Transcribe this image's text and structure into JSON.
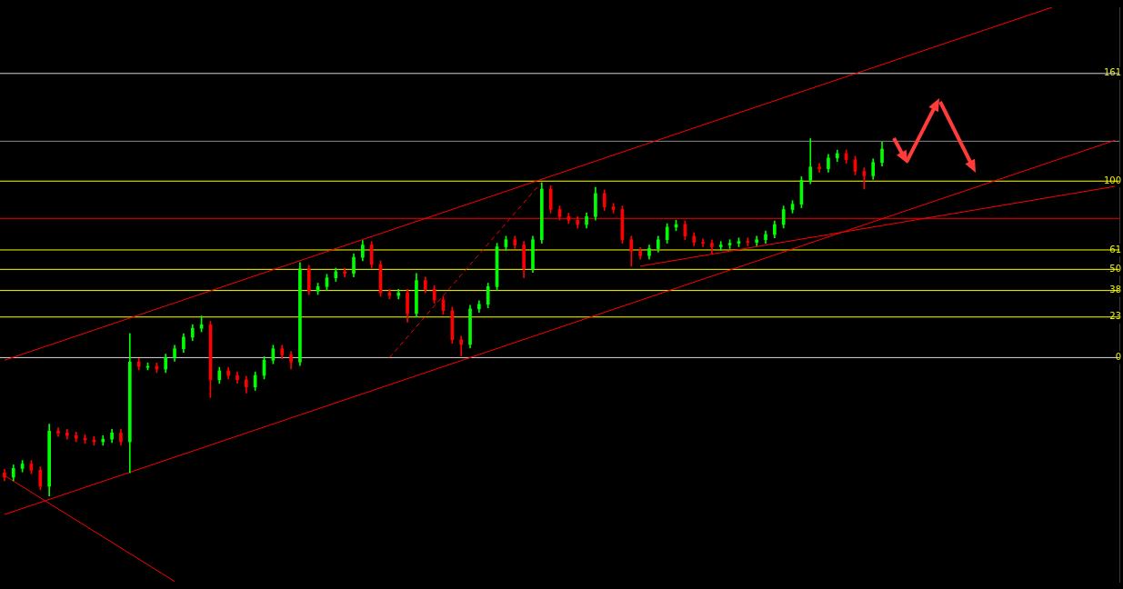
{
  "chart_data": {
    "type": "candlestick",
    "tick_labels": "y",
    "categories": [
      null,
      null,
      null,
      null,
      null,
      null,
      null,
      null,
      null,
      null,
      null,
      null,
      null,
      null,
      null,
      null,
      null,
      null,
      null,
      null,
      null,
      null,
      null,
      null,
      null,
      null,
      null,
      null,
      null,
      null,
      null,
      null,
      null,
      null,
      null,
      null,
      null,
      null,
      null,
      null,
      null,
      null,
      null,
      null,
      null,
      null,
      null,
      null,
      null,
      null,
      null,
      null,
      null,
      null,
      null,
      null,
      null,
      null,
      null,
      null,
      null,
      null,
      null,
      null,
      null,
      null,
      null,
      null,
      null,
      null,
      null,
      null,
      null,
      null,
      null,
      null,
      null,
      null,
      null,
      null,
      null,
      null,
      null,
      null,
      null,
      null,
      null,
      null,
      null,
      null,
      null,
      null,
      null,
      null,
      null,
      null,
      null,
      null,
      null,
      null,
      null,
      null,
      null,
      null,
      null,
      null,
      null,
      null,
      null,
      null,
      null,
      null,
      null,
      null,
      null,
      null,
      null,
      null,
      null,
      null,
      null,
      null,
      null,
      null,
      null
    ],
    "ohlc": [
      [
        -65.3,
        -63.3,
        -69.8,
        -67.8
      ],
      [
        -67.8,
        -60.8,
        -69.8,
        -62.8
      ],
      [
        -62.8,
        -58.3,
        -64.8,
        -60.3
      ],
      [
        -60.3,
        -58.3,
        -65.8,
        -63.8
      ],
      [
        -63.8,
        -61.8,
        -74.9,
        -72.9
      ],
      [
        -72.9,
        -37.7,
        -78.4,
        -41.7
      ],
      [
        -41.7,
        -39.7,
        -44.7,
        -42.7
      ],
      [
        -42.7,
        -40.7,
        -46.2,
        -44.2
      ],
      [
        -44.2,
        -42.2,
        -47.7,
        -45.7
      ],
      [
        -45.7,
        -43.7,
        -48.7,
        -46.7
      ],
      [
        -46.7,
        -44.7,
        -49.7,
        -47.7
      ],
      [
        -47.7,
        -44.2,
        -49.7,
        -46.2
      ],
      [
        -46.2,
        -40.7,
        -48.2,
        -42.7
      ],
      [
        -42.7,
        -40.7,
        -49.7,
        -47.7
      ],
      [
        -47.7,
        13.6,
        -65.3,
        -2.5
      ],
      [
        -2.5,
        -0.5,
        -7.0,
        -5.0
      ],
      [
        -5.0,
        -3.0,
        -7.0,
        -5.0
      ],
      [
        -5.0,
        -3.0,
        -8.5,
        -6.5
      ],
      [
        -6.5,
        2.0,
        -8.5,
        0
      ],
      [
        0,
        7.0,
        -2.0,
        5.0
      ],
      [
        5.0,
        13.6,
        3.0,
        11.6
      ],
      [
        11.6,
        18.6,
        9.6,
        16.6
      ],
      [
        16.6,
        23.6,
        14.6,
        18.6
      ],
      [
        18.6,
        20.6,
        -22.6,
        -12.6
      ],
      [
        -12.6,
        -5.5,
        -14.6,
        -7.5
      ],
      [
        -7.5,
        -5.5,
        -12.1,
        -10.1
      ],
      [
        -10.1,
        -8.1,
        -14.6,
        -12.6
      ],
      [
        -12.6,
        -10.6,
        -20.1,
        -16.6
      ],
      [
        -16.6,
        -8.1,
        -18.6,
        -10.1
      ],
      [
        -10.1,
        0.5,
        -12.1,
        -1.5
      ],
      [
        -1.5,
        7.0,
        -3.5,
        5.0
      ],
      [
        5.0,
        7.0,
        -0.5,
        1.5
      ],
      [
        1.5,
        3.5,
        -6.5,
        -2.5
      ],
      [
        -2.5,
        53.8,
        -4.5,
        50.3
      ],
      [
        50.3,
        52.3,
        35.7,
        37.7
      ],
      [
        37.7,
        42.2,
        35.7,
        40.2
      ],
      [
        40.2,
        47.2,
        38.2,
        45.2
      ],
      [
        45.2,
        50.7,
        43.2,
        48.7
      ],
      [
        48.7,
        50.7,
        45.7,
        47.7
      ],
      [
        47.7,
        58.8,
        45.7,
        56.8
      ],
      [
        56.8,
        66.3,
        54.8,
        63.8
      ],
      [
        63.8,
        65.8,
        50.8,
        52.8
      ],
      [
        52.8,
        54.8,
        34.7,
        36.7
      ],
      [
        36.7,
        38.7,
        33.2,
        35.2
      ],
      [
        35.2,
        38.7,
        33.2,
        36.7
      ],
      [
        36.7,
        38.7,
        20.1,
        25.1
      ],
      [
        25.1,
        47.7,
        23.1,
        43.7
      ],
      [
        43.7,
        45.7,
        36.7,
        38.7
      ],
      [
        38.7,
        40.7,
        30.7,
        32.7
      ],
      [
        32.7,
        34.7,
        24.6,
        26.6
      ],
      [
        26.6,
        28.6,
        8.1,
        10.1
      ],
      [
        10.1,
        12.1,
        1.0,
        7.5
      ],
      [
        7.5,
        29.6,
        5.5,
        27.6
      ],
      [
        27.6,
        32.2,
        25.6,
        30.2
      ],
      [
        30.2,
        42.2,
        28.2,
        40.2
      ],
      [
        40.2,
        64.8,
        38.2,
        62.8
      ],
      [
        62.8,
        68.8,
        60.8,
        66.8
      ],
      [
        66.8,
        68.8,
        61.8,
        63.8
      ],
      [
        63.8,
        65.8,
        45.2,
        50.3
      ],
      [
        50.3,
        68.8,
        48.3,
        66.8
      ],
      [
        66.8,
        99.0,
        64.8,
        95.5
      ],
      [
        95.5,
        97.5,
        81.9,
        83.9
      ],
      [
        83.9,
        85.9,
        77.9,
        79.9
      ],
      [
        79.9,
        81.9,
        75.9,
        77.9
      ],
      [
        77.9,
        79.9,
        73.4,
        75.4
      ],
      [
        75.4,
        81.9,
        73.4,
        79.9
      ],
      [
        79.9,
        96.5,
        77.9,
        93.0
      ],
      [
        93.0,
        95.0,
        83.4,
        85.4
      ],
      [
        85.4,
        87.4,
        81.9,
        83.9
      ],
      [
        83.9,
        85.9,
        64.8,
        66.8
      ],
      [
        66.8,
        68.8,
        51.8,
        60.3
      ],
      [
        60.3,
        62.3,
        55.8,
        57.8
      ],
      [
        57.8,
        63.8,
        55.8,
        61.8
      ],
      [
        61.8,
        68.8,
        59.8,
        66.8
      ],
      [
        66.8,
        75.9,
        64.8,
        73.9
      ],
      [
        73.9,
        77.9,
        71.9,
        75.4
      ],
      [
        75.4,
        77.4,
        66.8,
        68.8
      ],
      [
        68.8,
        70.8,
        63.3,
        65.3
      ],
      [
        65.3,
        67.3,
        62.8,
        64.8
      ],
      [
        64.8,
        66.8,
        58.8,
        62.8
      ],
      [
        62.8,
        65.8,
        60.8,
        63.8
      ],
      [
        63.8,
        66.8,
        61.8,
        64.8
      ],
      [
        64.8,
        67.8,
        62.8,
        65.8
      ],
      [
        65.8,
        67.8,
        63.3,
        65.3
      ],
      [
        65.3,
        68.8,
        63.3,
        66.8
      ],
      [
        66.8,
        71.8,
        64.8,
        69.8
      ],
      [
        69.8,
        77.4,
        67.8,
        75.4
      ],
      [
        75.4,
        85.9,
        73.4,
        83.9
      ],
      [
        83.9,
        88.9,
        81.9,
        86.9
      ],
      [
        86.9,
        102.5,
        84.9,
        100.5
      ],
      [
        100.5,
        124.1,
        98.5,
        108.0
      ],
      [
        108.0,
        110.0,
        105.0,
        107.0
      ],
      [
        107.0,
        115.1,
        105.0,
        113.1
      ],
      [
        113.1,
        117.6,
        111.1,
        115.6
      ],
      [
        115.6,
        117.6,
        110.1,
        112.1
      ],
      [
        112.1,
        114.1,
        103.5,
        105.5
      ],
      [
        105.5,
        107.5,
        95.5,
        103.0
      ],
      [
        103.0,
        112.6,
        101.0,
        110.6
      ],
      [
        110.6,
        122.1,
        108.6,
        118.1
      ],
      null,
      null,
      null,
      null,
      null,
      null,
      null,
      null,
      null,
      null,
      null,
      null,
      null,
      null,
      null,
      null,
      null,
      null,
      null,
      null,
      null,
      null,
      null,
      null,
      null,
      null
    ],
    "series": [
      {
        "type": "line",
        "color": "#ff0000",
        "values": [
          -1.5,
          null,
          null,
          null,
          null,
          null,
          null,
          null,
          null,
          null,
          null,
          null,
          null,
          null,
          null,
          null,
          null,
          null,
          null,
          null,
          null,
          null,
          null,
          null,
          null,
          null,
          null,
          null,
          null,
          null,
          null,
          null,
          null,
          null,
          null,
          null,
          null,
          null,
          null,
          null,
          null,
          null,
          null,
          null,
          null,
          null,
          null,
          null,
          null,
          null,
          null,
          null,
          null,
          null,
          null,
          null,
          null,
          null,
          null,
          null,
          null,
          null,
          null,
          null,
          null,
          null,
          null,
          null,
          null,
          null,
          null,
          null,
          null,
          null,
          null,
          null,
          null,
          null,
          null,
          null,
          null,
          null,
          null,
          null,
          null,
          null,
          null,
          null,
          null,
          null,
          null,
          null,
          null,
          null,
          null,
          null,
          null,
          null,
          null,
          null,
          null,
          null,
          null,
          null,
          null,
          null,
          null,
          null,
          null,
          null,
          null,
          null,
          null,
          null,
          null,
          null,
          null,
          198.5,
          null,
          null,
          null,
          null,
          null,
          null,
          null
        ]
      },
      {
        "type": "line",
        "color": "#ff0000",
        "values": [
          -88.9,
          null,
          null,
          null,
          null,
          null,
          null,
          null,
          null,
          null,
          null,
          null,
          null,
          null,
          null,
          null,
          null,
          null,
          null,
          null,
          null,
          null,
          null,
          null,
          null,
          null,
          null,
          null,
          null,
          null,
          null,
          null,
          null,
          null,
          null,
          null,
          null,
          null,
          null,
          null,
          null,
          null,
          null,
          null,
          null,
          null,
          null,
          null,
          null,
          null,
          null,
          null,
          null,
          null,
          null,
          null,
          null,
          null,
          null,
          null,
          null,
          null,
          null,
          null,
          null,
          null,
          null,
          null,
          null,
          null,
          null,
          null,
          null,
          null,
          null,
          null,
          null,
          null,
          null,
          null,
          null,
          null,
          null,
          null,
          null,
          null,
          null,
          null,
          null,
          null,
          null,
          null,
          null,
          null,
          null,
          null,
          null,
          null,
          null,
          null,
          null,
          null,
          null,
          null,
          null,
          null,
          null,
          null,
          null,
          null,
          null,
          null,
          null,
          null,
          null,
          null,
          null,
          null,
          null,
          null,
          null,
          null,
          null,
          null,
          123.1
        ]
      },
      {
        "type": "line",
        "color": "#ff0000",
        "values": [
          -66.8,
          null,
          null,
          null,
          null,
          null,
          null,
          null,
          null,
          null,
          null,
          null,
          null,
          null,
          null,
          null,
          null,
          null,
          null,
          -126.8,
          null,
          null,
          null,
          null,
          null,
          null,
          null,
          null,
          null,
          null,
          null,
          null,
          null,
          null,
          null,
          null,
          null,
          null,
          null,
          null,
          null,
          null,
          null,
          null,
          null,
          null,
          null,
          null,
          null,
          null,
          null,
          null,
          null,
          null,
          null,
          null,
          null,
          null,
          null,
          null,
          null,
          null,
          null,
          null,
          null,
          null,
          null,
          null,
          null,
          null,
          null,
          null,
          null,
          null,
          null,
          null,
          null,
          null,
          null,
          null,
          null,
          null,
          null,
          null,
          null,
          null,
          null,
          null,
          null,
          null,
          null,
          null,
          null,
          null,
          null,
          null,
          null,
          null,
          null,
          null,
          null,
          null,
          null,
          null,
          null,
          null,
          null,
          null,
          null,
          null,
          null,
          null,
          null,
          null,
          null,
          null,
          null,
          null,
          null,
          null,
          null,
          null,
          null,
          null,
          null
        ]
      },
      {
        "type": "line",
        "color": "#ff0000",
        "line_style": "dashed",
        "values": [
          null,
          null,
          null,
          null,
          null,
          null,
          null,
          null,
          null,
          null,
          null,
          null,
          null,
          null,
          null,
          null,
          null,
          null,
          null,
          null,
          null,
          null,
          null,
          null,
          null,
          null,
          null,
          null,
          null,
          null,
          null,
          null,
          null,
          null,
          null,
          null,
          null,
          null,
          null,
          null,
          null,
          null,
          null,
          0,
          null,
          null,
          null,
          null,
          null,
          null,
          null,
          null,
          null,
          null,
          null,
          null,
          null,
          null,
          null,
          null,
          99.5,
          null,
          null,
          null,
          null,
          null,
          null,
          null,
          null,
          null,
          null,
          null,
          null,
          null,
          null,
          null,
          null,
          null,
          null,
          null,
          null,
          null,
          null,
          null,
          null,
          null,
          null,
          null,
          null,
          null,
          null,
          null,
          null,
          null,
          null,
          null,
          null,
          null,
          null,
          null,
          null,
          null,
          null,
          null,
          null,
          null,
          null,
          null,
          null,
          null,
          null,
          null,
          null,
          null,
          null,
          null,
          null,
          null,
          null,
          null,
          null,
          null,
          null,
          null,
          null
        ]
      },
      {
        "type": "line",
        "color": "#ff0000",
        "values": [
          null,
          null,
          null,
          null,
          null,
          null,
          null,
          null,
          null,
          null,
          null,
          null,
          null,
          null,
          null,
          null,
          null,
          null,
          null,
          null,
          null,
          null,
          null,
          null,
          null,
          null,
          null,
          null,
          null,
          null,
          null,
          null,
          null,
          null,
          null,
          null,
          null,
          null,
          null,
          null,
          null,
          null,
          null,
          null,
          null,
          null,
          null,
          null,
          null,
          null,
          null,
          null,
          null,
          null,
          null,
          null,
          null,
          null,
          null,
          null,
          null,
          null,
          null,
          null,
          null,
          null,
          null,
          null,
          null,
          null,
          null,
          51.8,
          null,
          null,
          null,
          null,
          null,
          null,
          null,
          null,
          null,
          null,
          null,
          null,
          null,
          null,
          null,
          null,
          null,
          null,
          null,
          null,
          null,
          null,
          null,
          null,
          null,
          null,
          null,
          null,
          null,
          null,
          null,
          null,
          null,
          null,
          null,
          null,
          null,
          null,
          null,
          null,
          null,
          null,
          null,
          null,
          null,
          null,
          null,
          null,
          null,
          null,
          null,
          null,
          97.0
        ]
      }
    ],
    "ylim": [
      -127,
      198.5
    ],
    "yticks": [
      161,
      100,
      61,
      50,
      38,
      23,
      0
    ],
    "ref_lines": [
      {
        "axis": "y",
        "value": 161,
        "color": "#d8d8d8"
      },
      {
        "axis": "y",
        "value": 100,
        "color": "#ffff00"
      },
      {
        "axis": "y",
        "value": 61,
        "color": "#ffff00"
      },
      {
        "axis": "y",
        "value": 50,
        "color": "#ffff00"
      },
      {
        "axis": "y",
        "value": 38,
        "color": "#ffff00"
      },
      {
        "axis": "y",
        "value": 23,
        "color": "#ffff00"
      },
      {
        "axis": "y",
        "value": 0,
        "color": "#d8d8d8"
      },
      {
        "axis": "y",
        "value": 122.6,
        "color": "#8a8a8a"
      },
      {
        "axis": "y",
        "value": 78.9,
        "color": "#ff0000"
      }
    ]
  }
}
